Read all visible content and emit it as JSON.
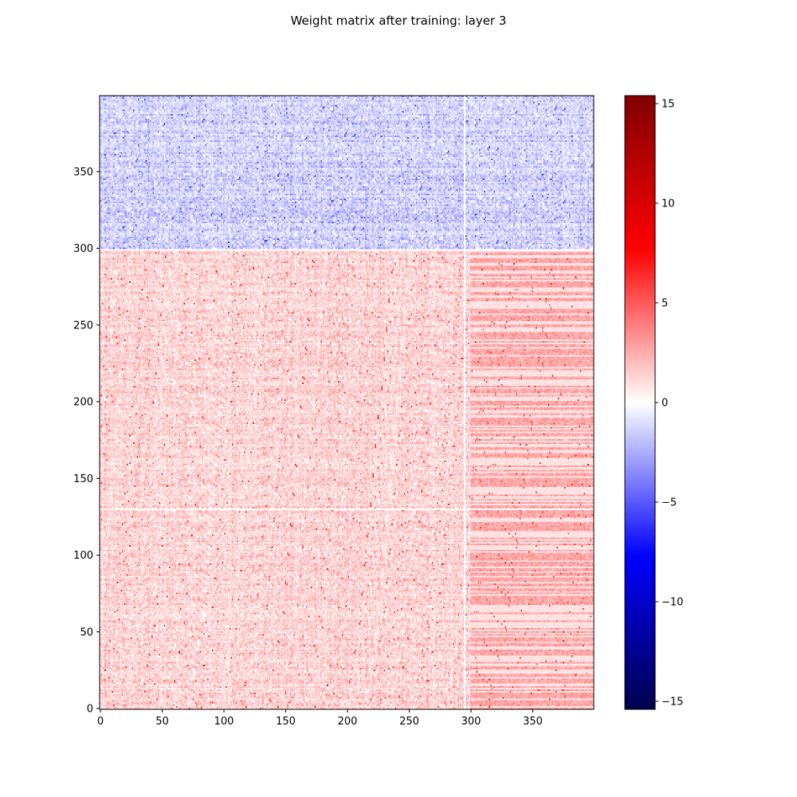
{
  "chart_data": {
    "type": "heatmap",
    "title": "Weight matrix after training: layer 3",
    "xlabel": "",
    "ylabel": "",
    "rows": 400,
    "cols": 400,
    "x_ticks": [
      0,
      50,
      100,
      150,
      200,
      250,
      300,
      350
    ],
    "y_ticks": [
      0,
      50,
      100,
      150,
      200,
      250,
      300,
      350
    ],
    "xlim": [
      0,
      400
    ],
    "ylim": [
      0,
      400
    ],
    "origin": "lower",
    "colorbar": {
      "colormap": "seismic",
      "vmin": -15.4,
      "vmax": 15.4,
      "ticks": [
        -15,
        -10,
        -5,
        0,
        5,
        10,
        15
      ]
    },
    "blocks": [
      {
        "rows": [
          0,
          300
        ],
        "cols": [
          0,
          300
        ],
        "sign": "positive",
        "typical_value": 1.2,
        "max_value": 8
      },
      {
        "rows": [
          0,
          300
        ],
        "cols": [
          300,
          400
        ],
        "sign": "positive",
        "typical_value": 2.0,
        "pattern": "horizontal stripes"
      },
      {
        "rows": [
          300,
          400
        ],
        "cols": [
          0,
          400
        ],
        "sign": "negative",
        "typical_value": -1.3,
        "min_value": -7
      }
    ],
    "gaps": {
      "blank_rows": [
        130,
        299
      ],
      "blank_cols": [
        295
      ]
    },
    "grid": false,
    "legend": "none"
  }
}
